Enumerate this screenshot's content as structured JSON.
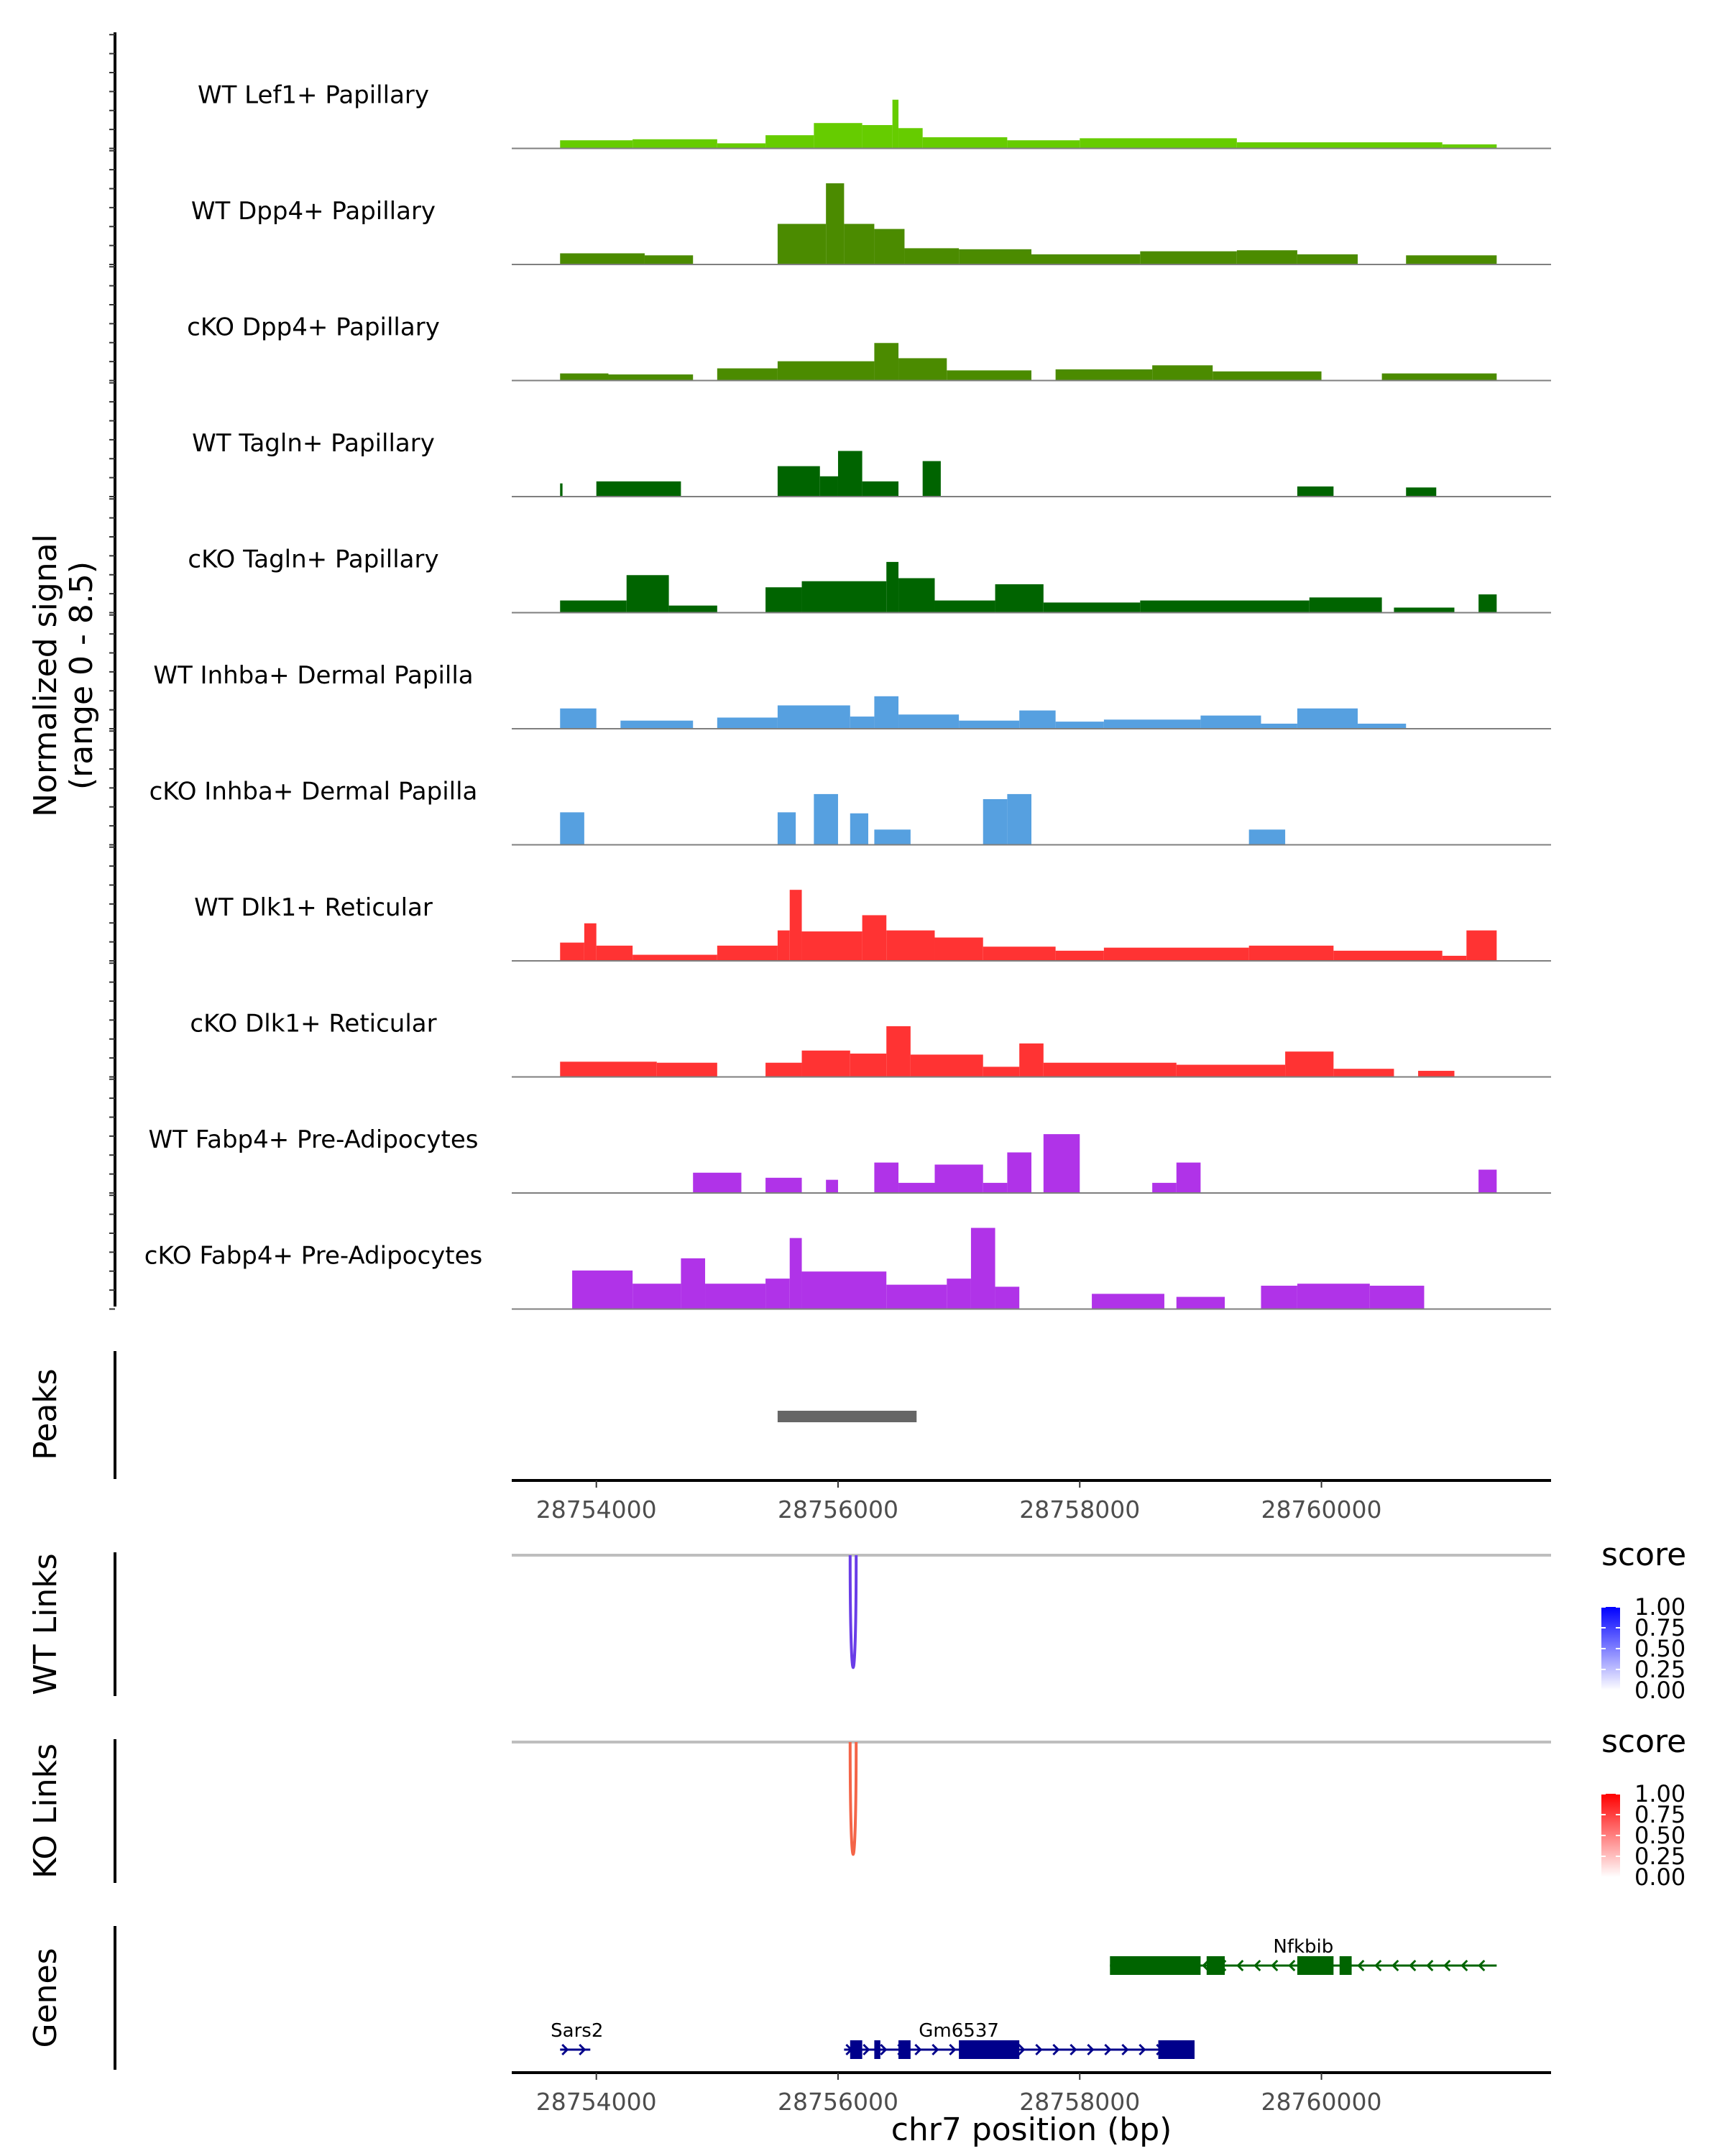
{
  "chart_data": {
    "type": "area",
    "title": "",
    "xlabel": "chr7 position (bp)",
    "chromosome": "chr7",
    "xlim": [
      28753300,
      28761900
    ],
    "x_ticks": [
      {
        "value": 28754000,
        "label": "28754000"
      },
      {
        "value": 28756000,
        "label": "28756000"
      },
      {
        "value": 28758000,
        "label": "28758000"
      },
      {
        "value": 28760000,
        "label": "28760000"
      }
    ],
    "coverage": {
      "ylabel_line1": "Normalized signal",
      "ylabel_line2": "(range 0 - 8.5)",
      "ylim": [
        0,
        8.5
      ],
      "tracks": [
        {
          "name": "WT Lef1+ Papillary",
          "color": "#66CC00",
          "blocks": [
            [
              28753700,
              28754300,
              0.8
            ],
            [
              28754300,
              28755000,
              0.9
            ],
            [
              28755000,
              28755400,
              0.5
            ],
            [
              28755400,
              28755800,
              1.3
            ],
            [
              28755800,
              28756200,
              2.5
            ],
            [
              28756200,
              28756450,
              2.3
            ],
            [
              28756450,
              28756500,
              4.8
            ],
            [
              28756500,
              28756700,
              2.0
            ],
            [
              28756700,
              28757400,
              1.1
            ],
            [
              28757400,
              28758000,
              0.8
            ],
            [
              28758000,
              28759300,
              1.0
            ],
            [
              28759300,
              28761000,
              0.6
            ],
            [
              28761000,
              28761450,
              0.4
            ]
          ]
        },
        {
          "name": "WT Dpp4+ Papillary",
          "color": "#4B8B00",
          "blocks": [
            [
              28753700,
              28754400,
              1.1
            ],
            [
              28754400,
              28754800,
              0.9
            ],
            [
              28755500,
              28755900,
              4.0
            ],
            [
              28755900,
              28756050,
              8.0
            ],
            [
              28756050,
              28756300,
              4.0
            ],
            [
              28756300,
              28756550,
              3.5
            ],
            [
              28756550,
              28757000,
              1.6
            ],
            [
              28757000,
              28757600,
              1.5
            ],
            [
              28757600,
              28758500,
              1.0
            ],
            [
              28758500,
              28759300,
              1.3
            ],
            [
              28759300,
              28759800,
              1.4
            ],
            [
              28759800,
              28760300,
              1.0
            ],
            [
              28760700,
              28761450,
              0.9
            ]
          ]
        },
        {
          "name": "cKO Dpp4+ Papillary",
          "color": "#4B8B00",
          "blocks": [
            [
              28753700,
              28754100,
              0.7
            ],
            [
              28754100,
              28754800,
              0.6
            ],
            [
              28755000,
              28755500,
              1.2
            ],
            [
              28755500,
              28756300,
              1.9
            ],
            [
              28756300,
              28756500,
              3.7
            ],
            [
              28756500,
              28756900,
              2.2
            ],
            [
              28756900,
              28757600,
              1.0
            ],
            [
              28757800,
              28758600,
              1.1
            ],
            [
              28758600,
              28759100,
              1.5
            ],
            [
              28759100,
              28760000,
              0.9
            ],
            [
              28760500,
              28761450,
              0.7
            ]
          ]
        },
        {
          "name": "WT Tagln+ Papillary",
          "color": "#006400",
          "blocks": [
            [
              28753700,
              28753720,
              1.3
            ],
            [
              28754000,
              28754700,
              1.5
            ],
            [
              28755500,
              28755850,
              3.0
            ],
            [
              28755850,
              28756000,
              2.0
            ],
            [
              28756000,
              28756200,
              4.5
            ],
            [
              28756200,
              28756500,
              1.5
            ],
            [
              28756700,
              28756850,
              3.5
            ],
            [
              28759800,
              28760100,
              1.0
            ],
            [
              28760700,
              28760950,
              0.9
            ]
          ]
        },
        {
          "name": "cKO Tagln+ Papillary",
          "color": "#006400",
          "blocks": [
            [
              28753700,
              28754250,
              1.2
            ],
            [
              28754250,
              28754600,
              3.7
            ],
            [
              28754600,
              28755000,
              0.7
            ],
            [
              28755400,
              28755700,
              2.5
            ],
            [
              28755700,
              28756400,
              3.1
            ],
            [
              28756400,
              28756500,
              5.0
            ],
            [
              28756500,
              28756800,
              3.4
            ],
            [
              28756800,
              28757300,
              1.2
            ],
            [
              28757300,
              28757700,
              2.8
            ],
            [
              28757700,
              28758500,
              1.0
            ],
            [
              28758500,
              28759900,
              1.2
            ],
            [
              28759900,
              28760500,
              1.5
            ],
            [
              28760600,
              28761100,
              0.5
            ],
            [
              28761300,
              28761450,
              1.8
            ]
          ]
        },
        {
          "name": "WT Inhba+ Dermal Papilla",
          "color": "#56A0E0",
          "blocks": [
            [
              28753700,
              28754000,
              2.0
            ],
            [
              28754200,
              28754800,
              0.8
            ],
            [
              28755000,
              28755500,
              1.1
            ],
            [
              28755500,
              28756100,
              2.3
            ],
            [
              28756100,
              28756300,
              1.2
            ],
            [
              28756300,
              28756500,
              3.2
            ],
            [
              28756500,
              28757000,
              1.4
            ],
            [
              28757000,
              28757500,
              0.8
            ],
            [
              28757500,
              28757800,
              1.8
            ],
            [
              28757800,
              28758200,
              0.7
            ],
            [
              28758200,
              28759000,
              0.9
            ],
            [
              28759000,
              28759500,
              1.3
            ],
            [
              28759500,
              28759800,
              0.5
            ],
            [
              28759800,
              28760300,
              2.0
            ],
            [
              28760300,
              28760700,
              0.5
            ]
          ]
        },
        {
          "name": "cKO Inhba+ Dermal Papilla",
          "color": "#56A0E0",
          "blocks": [
            [
              28753700,
              28753900,
              3.2
            ],
            [
              28755500,
              28755650,
              3.2
            ],
            [
              28755800,
              28756000,
              5.0
            ],
            [
              28756100,
              28756250,
              3.1
            ],
            [
              28756300,
              28756600,
              1.5
            ],
            [
              28757200,
              28757400,
              4.5
            ],
            [
              28757400,
              28757600,
              5.0
            ],
            [
              28759400,
              28759700,
              1.5
            ]
          ]
        },
        {
          "name": "WT Dlk1+ Reticular",
          "color": "#FF3333",
          "blocks": [
            [
              28753700,
              28753900,
              1.8
            ],
            [
              28753900,
              28754000,
              3.7
            ],
            [
              28754000,
              28754300,
              1.5
            ],
            [
              28754300,
              28755000,
              0.6
            ],
            [
              28755000,
              28755500,
              1.5
            ],
            [
              28755500,
              28755600,
              3.0
            ],
            [
              28755600,
              28755700,
              7.0
            ],
            [
              28755700,
              28756200,
              2.9
            ],
            [
              28756200,
              28756400,
              4.5
            ],
            [
              28756400,
              28756800,
              3.0
            ],
            [
              28756800,
              28757200,
              2.3
            ],
            [
              28757200,
              28757800,
              1.4
            ],
            [
              28757800,
              28758200,
              1.0
            ],
            [
              28758200,
              28759400,
              1.3
            ],
            [
              28759400,
              28760100,
              1.5
            ],
            [
              28760100,
              28761000,
              1.0
            ],
            [
              28761000,
              28761200,
              0.5
            ],
            [
              28761200,
              28761450,
              3.0
            ]
          ]
        },
        {
          "name": "cKO Dlk1+ Reticular",
          "color": "#FF3333",
          "blocks": [
            [
              28753700,
              28754500,
              1.5
            ],
            [
              28754500,
              28755000,
              1.4
            ],
            [
              28755400,
              28755700,
              1.4
            ],
            [
              28755700,
              28756100,
              2.6
            ],
            [
              28756100,
              28756400,
              2.3
            ],
            [
              28756400,
              28756600,
              5.0
            ],
            [
              28756600,
              28757200,
              2.2
            ],
            [
              28757200,
              28757500,
              1.0
            ],
            [
              28757500,
              28757700,
              3.3
            ],
            [
              28757700,
              28758800,
              1.4
            ],
            [
              28758800,
              28759700,
              1.2
            ],
            [
              28759700,
              28760100,
              2.5
            ],
            [
              28760100,
              28760600,
              0.8
            ],
            [
              28760800,
              28761100,
              0.6
            ]
          ]
        },
        {
          "name": "WT Fabp4+ Pre-Adipocytes",
          "color": "#B033E8",
          "blocks": [
            [
              28754800,
              28755200,
              2.0
            ],
            [
              28755400,
              28755700,
              1.5
            ],
            [
              28755900,
              28756000,
              1.3
            ],
            [
              28756300,
              28756500,
              3.0
            ],
            [
              28756500,
              28756800,
              1.0
            ],
            [
              28756800,
              28757200,
              2.8
            ],
            [
              28757200,
              28757400,
              1.0
            ],
            [
              28757400,
              28757600,
              4.0
            ],
            [
              28757700,
              28758000,
              5.8
            ],
            [
              28758600,
              28758800,
              1.0
            ],
            [
              28758800,
              28759000,
              3.0
            ],
            [
              28761300,
              28761450,
              2.3
            ]
          ]
        },
        {
          "name": "cKO Fabp4+ Pre-Adipocytes",
          "color": "#B033E8",
          "blocks": [
            [
              28753800,
              28754300,
              3.8
            ],
            [
              28754300,
              28754700,
              2.5
            ],
            [
              28754700,
              28754900,
              5.0
            ],
            [
              28754900,
              28755400,
              2.5
            ],
            [
              28755400,
              28755600,
              3.0
            ],
            [
              28755600,
              28755700,
              7.0
            ],
            [
              28755700,
              28756400,
              3.7
            ],
            [
              28756400,
              28756900,
              2.4
            ],
            [
              28756900,
              28757100,
              3.0
            ],
            [
              28757100,
              28757300,
              8.0
            ],
            [
              28757300,
              28757500,
              2.2
            ],
            [
              28758100,
              28758700,
              1.5
            ],
            [
              28758800,
              28759200,
              1.2
            ],
            [
              28759500,
              28759800,
              2.3
            ],
            [
              28759800,
              28760400,
              2.5
            ],
            [
              28760400,
              28760850,
              2.3
            ]
          ]
        }
      ]
    },
    "peaks": {
      "label": "Peaks",
      "regions": [
        [
          28755500,
          28756650
        ]
      ]
    },
    "links": [
      {
        "label": "WT Links",
        "color": "#6A3DE8",
        "baseline_color": "#BEBEBE",
        "arcs": [
          {
            "start": 28756100,
            "end": 28756150,
            "score": 0.65
          }
        ],
        "legend": {
          "title": "score",
          "colors": [
            "#FFFFFF",
            "#0000FF"
          ],
          "ticks": [
            "1.00",
            "0.75",
            "0.50",
            "0.25",
            "0.00"
          ]
        }
      },
      {
        "label": "KO Links",
        "color": "#F46548",
        "baseline_color": "#BEBEBE",
        "arcs": [
          {
            "start": 28756100,
            "end": 28756150,
            "score": 0.65
          }
        ],
        "legend": {
          "title": "score",
          "colors": [
            "#FFFFFF",
            "#FF0000"
          ],
          "ticks": [
            "1.00",
            "0.75",
            "0.50",
            "0.25",
            "0.00"
          ]
        }
      }
    ],
    "genes": {
      "label": "Genes",
      "items": [
        {
          "name": "Nfkbib",
          "color": "#006400",
          "strand": "-",
          "start": 28758250,
          "end": 28761450,
          "label_position": 28759850,
          "exons": [
            [
              28758250,
              28759000,
              "cds"
            ],
            [
              28759050,
              28759200,
              "cds"
            ],
            [
              28759800,
              28760100,
              "cds"
            ],
            [
              28760150,
              28760250,
              "cds"
            ]
          ]
        },
        {
          "name": "Sars2",
          "color": "#00008B",
          "strand": "+",
          "start": 28753700,
          "end": 28753950,
          "label_position": 28753840,
          "exons": []
        },
        {
          "name": "Gm6537",
          "color": "#00008B",
          "strand": "+",
          "start": 28756050,
          "end": 28758950,
          "label_position": 28757000,
          "exons": [
            [
              28756100,
              28756200,
              "cds"
            ],
            [
              28756300,
              28756350,
              "cds"
            ],
            [
              28756500,
              28756600,
              "cds"
            ],
            [
              28757000,
              28757500,
              "cds"
            ],
            [
              28758650,
              28758950,
              "cds"
            ]
          ]
        }
      ]
    }
  }
}
